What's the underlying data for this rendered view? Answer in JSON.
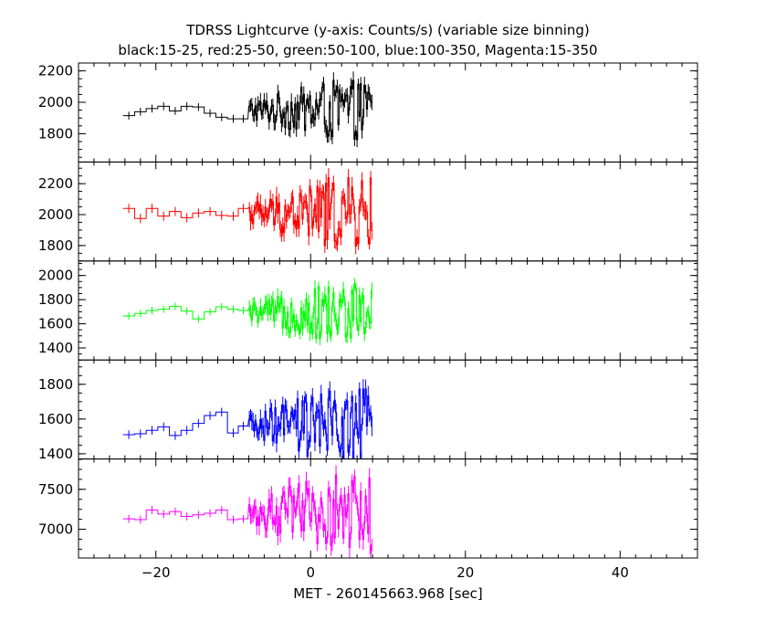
{
  "chart_data": {
    "type": "line",
    "title": "TDRSS Lightcurve (y-axis: Counts/s) (variable size binning)",
    "subtitle": "black:15-25, red:25-50, green:50-100, blue:100-350, Magenta:15-350",
    "xlabel": "MET - 260145663.968 [sec]",
    "xlim": [
      -30,
      50
    ],
    "x_ticks": [
      -20,
      0,
      20,
      40
    ],
    "x_tick_labels": [
      "−20",
      "0",
      "20",
      "40"
    ],
    "panels": [
      {
        "name": "black",
        "color": "#000000",
        "band": "15-25",
        "ylim": [
          1620,
          2250
        ],
        "y_ticks": [
          1800,
          2000,
          2200
        ],
        "coarse": {
          "x": [
            -23.5,
            -22,
            -20.5,
            -19,
            -17.5,
            -16,
            -14.5,
            -13,
            -11.5,
            -10,
            -8.7
          ],
          "y": [
            1915,
            1940,
            1960,
            1975,
            1945,
            1975,
            1970,
            1930,
            1905,
            1895,
            1895
          ],
          "err": 25
        },
        "fine_start": -8,
        "fine_end": 8,
        "fine_base": 1950,
        "fine_amp": [
          60,
          190
        ],
        "fine_err": 45
      },
      {
        "name": "red",
        "color": "#ff0000",
        "band": "25-50",
        "ylim": [
          1700,
          2340
        ],
        "y_ticks": [
          1800,
          2000,
          2200
        ],
        "coarse": {
          "x": [
            -23.5,
            -22,
            -20.5,
            -19,
            -17.5,
            -16,
            -14.5,
            -13,
            -11.5,
            -10,
            -8.7
          ],
          "y": [
            2040,
            1975,
            2040,
            1990,
            2020,
            1980,
            2010,
            2020,
            1995,
            1990,
            2040
          ],
          "err": 30
        },
        "fine_start": -8,
        "fine_end": 8,
        "fine_base": 2010,
        "fine_amp": [
          70,
          230
        ],
        "fine_err": 50
      },
      {
        "name": "green",
        "color": "#00ff00",
        "band": "50-100",
        "ylim": [
          1300,
          2120
        ],
        "y_ticks": [
          1400,
          1600,
          1800,
          2000
        ],
        "coarse": {
          "x": [
            -23.5,
            -22,
            -20.5,
            -19,
            -17.5,
            -16,
            -14.5,
            -13,
            -11.5,
            -10,
            -8.7
          ],
          "y": [
            1665,
            1685,
            1710,
            1720,
            1745,
            1705,
            1640,
            1700,
            1740,
            1720,
            1710
          ],
          "err": 30
        },
        "fine_start": -8,
        "fine_end": 8,
        "fine_base": 1690,
        "fine_amp": [
          70,
          250
        ],
        "fine_err": 55
      },
      {
        "name": "blue",
        "color": "#0000ff",
        "band": "100-350",
        "ylim": [
          1370,
          1940
        ],
        "y_ticks": [
          1400,
          1600,
          1800
        ],
        "coarse": {
          "x": [
            -23.5,
            -22,
            -20.5,
            -19,
            -17.5,
            -16,
            -14.5,
            -13,
            -11.5,
            -10,
            -8.7
          ],
          "y": [
            1510,
            1515,
            1535,
            1555,
            1505,
            1535,
            1575,
            1620,
            1640,
            1520,
            1560
          ],
          "err": 25
        },
        "fine_start": -8,
        "fine_end": 8,
        "fine_base": 1560,
        "fine_amp": [
          60,
          220
        ],
        "fine_err": 45
      },
      {
        "name": "magenta",
        "color": "#ff00ff",
        "band": "15-350",
        "ylim": [
          6640,
          7880
        ],
        "y_ticks": [
          7000,
          7500
        ],
        "coarse": {
          "x": [
            -23.5,
            -22,
            -20.5,
            -19,
            -17.5,
            -16,
            -14.5,
            -13,
            -11.5,
            -10,
            -8.7
          ],
          "y": [
            7130,
            7120,
            7240,
            7190,
            7220,
            7160,
            7180,
            7200,
            7240,
            7120,
            7130
          ],
          "err": 50
        },
        "fine_start": -8,
        "fine_end": 8,
        "fine_base": 7200,
        "fine_amp": [
          150,
          520
        ],
        "fine_err": 100
      }
    ]
  }
}
